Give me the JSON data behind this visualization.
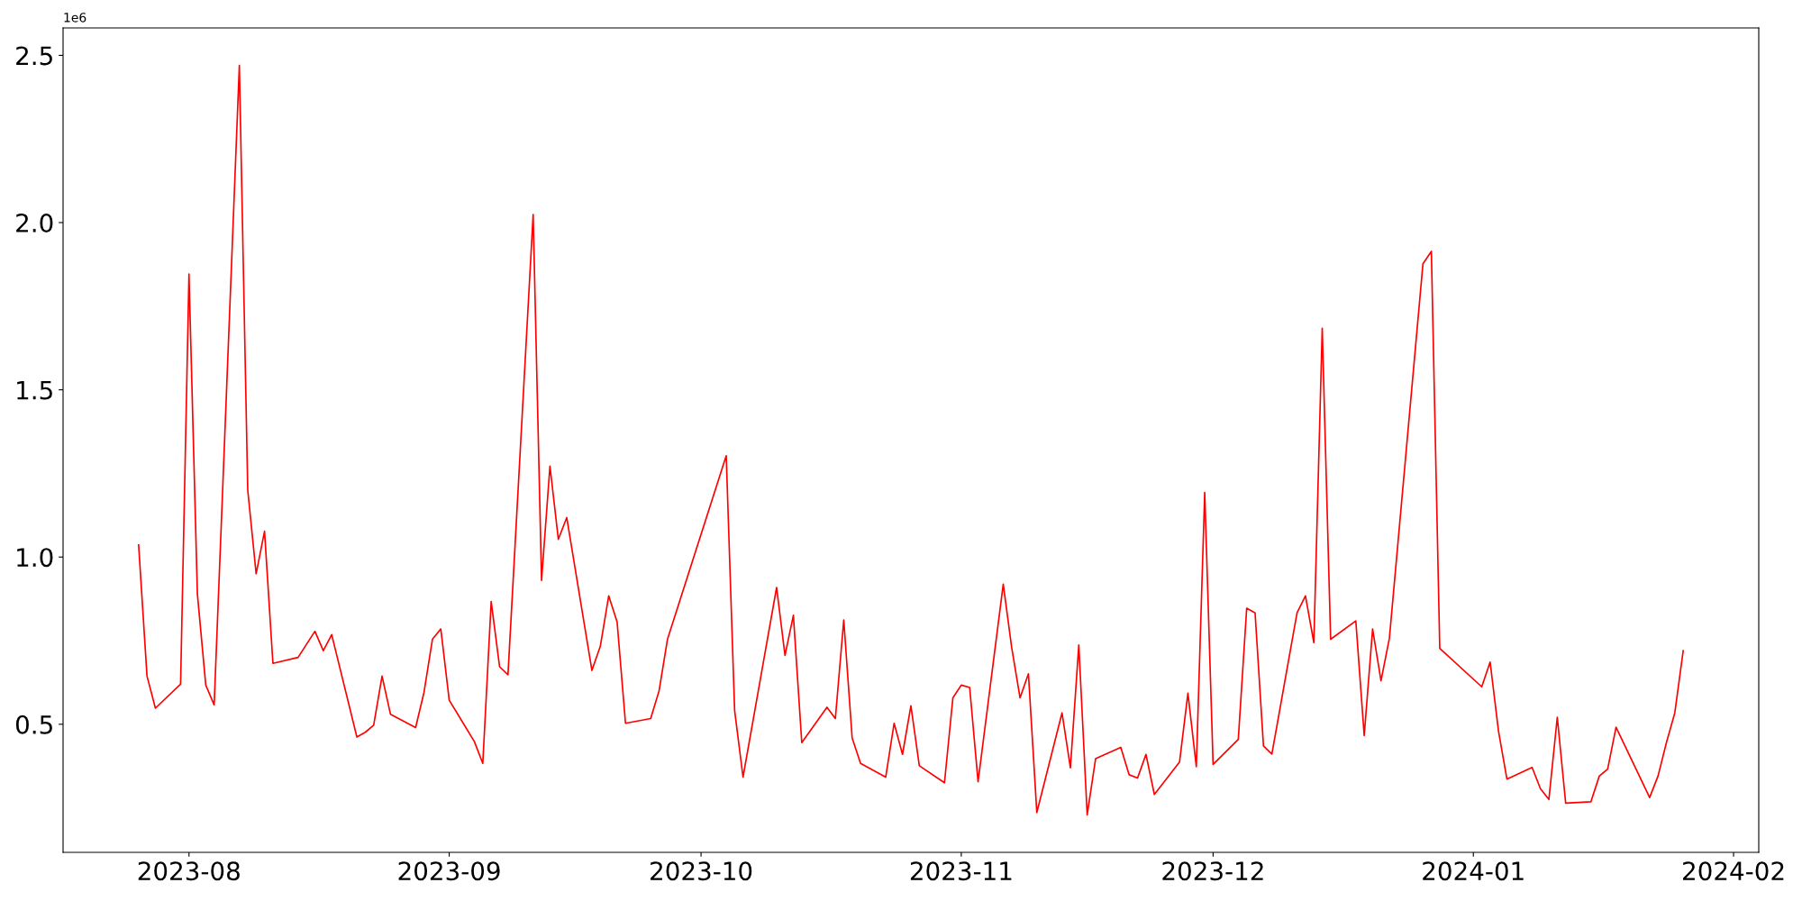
{
  "chart_data": {
    "type": "line",
    "x": [
      "2023-07-26",
      "2023-07-27",
      "2023-07-28",
      "2023-07-31",
      "2023-08-01",
      "2023-08-02",
      "2023-08-03",
      "2023-08-04",
      "2023-08-07",
      "2023-08-08",
      "2023-08-09",
      "2023-08-10",
      "2023-08-11",
      "2023-08-14",
      "2023-08-16",
      "2023-08-17",
      "2023-08-18",
      "2023-08-21",
      "2023-08-22",
      "2023-08-23",
      "2023-08-24",
      "2023-08-25",
      "2023-08-28",
      "2023-08-29",
      "2023-08-30",
      "2023-08-31",
      "2023-09-01",
      "2023-09-04",
      "2023-09-05",
      "2023-09-06",
      "2023-09-07",
      "2023-09-08",
      "2023-09-11",
      "2023-09-12",
      "2023-09-13",
      "2023-09-14",
      "2023-09-15",
      "2023-09-18",
      "2023-09-19",
      "2023-09-20",
      "2023-09-21",
      "2023-09-22",
      "2023-09-25",
      "2023-09-26",
      "2023-09-27",
      "2023-10-04",
      "2023-10-05",
      "2023-10-06",
      "2023-10-10",
      "2023-10-11",
      "2023-10-12",
      "2023-10-13",
      "2023-10-16",
      "2023-10-17",
      "2023-10-18",
      "2023-10-19",
      "2023-10-20",
      "2023-10-23",
      "2023-10-24",
      "2023-10-25",
      "2023-10-26",
      "2023-10-27",
      "2023-10-30",
      "2023-10-31",
      "2023-11-01",
      "2023-11-02",
      "2023-11-03",
      "2023-11-06",
      "2023-11-07",
      "2023-11-08",
      "2023-11-09",
      "2023-11-10",
      "2023-11-13",
      "2023-11-14",
      "2023-11-15",
      "2023-11-16",
      "2023-11-17",
      "2023-11-20",
      "2023-11-21",
      "2023-11-22",
      "2023-11-23",
      "2023-11-24",
      "2023-11-27",
      "2023-11-28",
      "2023-11-29",
      "2023-11-30",
      "2023-12-01",
      "2023-12-04",
      "2023-12-05",
      "2023-12-06",
      "2023-12-07",
      "2023-12-08",
      "2023-12-11",
      "2023-12-12",
      "2023-12-13",
      "2023-12-14",
      "2023-12-15",
      "2023-12-18",
      "2023-12-19",
      "2023-12-20",
      "2023-12-21",
      "2023-12-22",
      "2023-12-26",
      "2023-12-27",
      "2023-12-28",
      "2024-01-02",
      "2024-01-03",
      "2024-01-04",
      "2024-01-05",
      "2024-01-08",
      "2024-01-09",
      "2024-01-10",
      "2024-01-11",
      "2024-01-12",
      "2024-01-15",
      "2024-01-16",
      "2024-01-17",
      "2024-01-18",
      "2024-01-22",
      "2024-01-23",
      "2024-01-24",
      "2024-01-25",
      "2024-01-26"
    ],
    "series": [
      {
        "color": "#ff0000",
        "values": [
          1.036,
          0.644,
          0.548,
          0.62,
          1.846,
          0.89,
          0.617,
          0.558,
          2.47,
          1.2,
          0.95,
          1.077,
          0.682,
          0.7,
          0.778,
          0.72,
          0.768,
          0.462,
          0.476,
          0.497,
          0.644,
          0.53,
          0.49,
          0.596,
          0.754,
          0.785,
          0.572,
          0.448,
          0.383,
          0.867,
          0.672,
          0.648,
          2.024,
          0.93,
          1.272,
          1.053,
          1.118,
          0.661,
          0.733,
          0.884,
          0.806,
          0.503,
          0.517,
          0.6,
          0.754,
          1.303,
          0.541,
          0.342,
          0.909,
          0.706,
          0.826,
          0.445,
          0.551,
          0.517,
          0.812,
          0.459,
          0.383,
          0.342,
          0.503,
          0.41,
          0.555,
          0.376,
          0.325,
          0.579,
          0.617,
          0.61,
          0.328,
          0.919,
          0.73,
          0.579,
          0.651,
          0.236,
          0.534,
          0.37,
          0.737,
          0.229,
          0.397,
          0.431,
          0.349,
          0.339,
          0.41,
          0.29,
          0.387,
          0.593,
          0.373,
          1.193,
          0.38,
          0.455,
          0.847,
          0.833,
          0.435,
          0.411,
          0.833,
          0.884,
          0.744,
          1.684,
          0.754,
          0.809,
          0.466,
          0.785,
          0.63,
          0.757,
          1.877,
          1.914,
          0.727,
          0.612,
          0.686,
          0.479,
          0.336,
          0.371,
          0.307,
          0.275,
          0.521,
          0.264,
          0.268,
          0.345,
          0.366,
          0.491,
          0.281,
          0.345,
          0.445,
          0.534,
          0.72
        ]
      }
    ],
    "xlim": [
      "2023-07-17",
      "2024-02-04"
    ],
    "xticks": [
      {
        "value": "2023-08-01",
        "label": "2023-08"
      },
      {
        "value": "2023-09-01",
        "label": "2023-09"
      },
      {
        "value": "2023-10-01",
        "label": "2023-10"
      },
      {
        "value": "2023-11-01",
        "label": "2023-11"
      },
      {
        "value": "2023-12-01",
        "label": "2023-12"
      },
      {
        "value": "2024-01-01",
        "label": "2024-01"
      },
      {
        "value": "2024-02-01",
        "label": "2024-02"
      }
    ],
    "ylim": [
      0.117,
      2.582
    ],
    "yticks": [
      0.5,
      {
        "value": 1,
        "label": "1.0"
      },
      1.5,
      {
        "value": 2,
        "label": "2.0"
      },
      2.5
    ],
    "annotations": [
      "1e6"
    ],
    "grid": false,
    "legend": false,
    "marker": "none",
    "line_style": "solid"
  }
}
